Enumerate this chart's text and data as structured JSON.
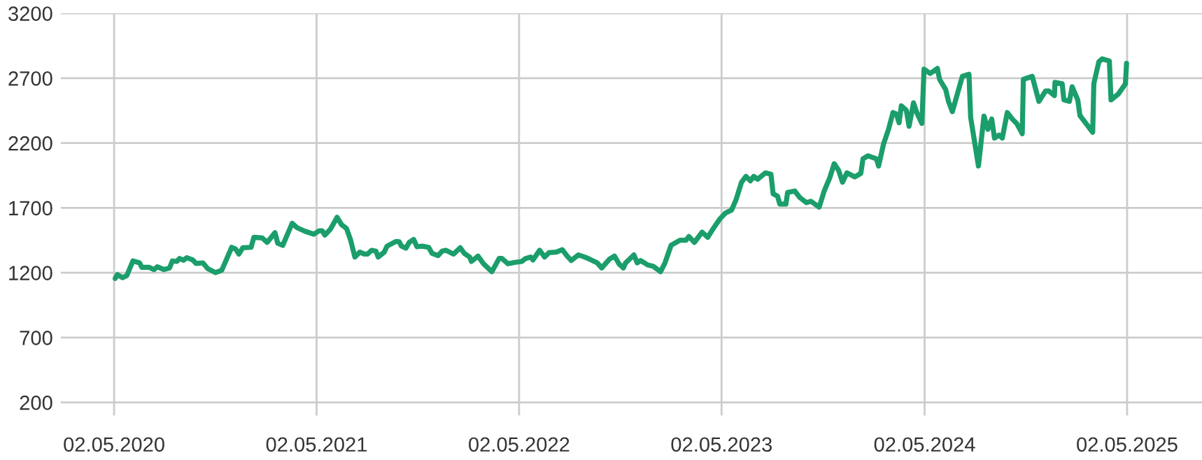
{
  "chart_data": {
    "type": "line",
    "x": [
      "2020-05-04",
      "2020-05-08",
      "2020-05-17",
      "2020-05-25",
      "2020-06-05",
      "2020-06-17",
      "2020-06-21",
      "2020-07-04",
      "2020-07-13",
      "2020-07-19",
      "2020-07-31",
      "2020-08-10",
      "2020-08-15",
      "2020-08-23",
      "2020-08-28",
      "2020-09-04",
      "2020-09-10",
      "2020-09-21",
      "2020-09-27",
      "2020-10-09",
      "2020-10-18",
      "2020-11-01",
      "2020-11-12",
      "2020-11-19",
      "2020-11-30",
      "2020-12-07",
      "2020-12-13",
      "2020-12-20",
      "2021-01-04",
      "2021-01-09",
      "2021-01-24",
      "2021-02-02",
      "2021-02-16",
      "2021-02-21",
      "2021-03-02",
      "2021-03-19",
      "2021-03-28",
      "2021-04-11",
      "2021-04-27",
      "2021-05-07",
      "2021-05-12",
      "2021-05-17",
      "2021-05-27",
      "2021-06-08",
      "2021-06-16",
      "2021-06-25",
      "2021-07-02",
      "2021-07-10",
      "2021-07-19",
      "2021-07-27",
      "2021-08-02",
      "2021-08-09",
      "2021-08-17",
      "2021-08-21",
      "2021-09-01",
      "2021-09-06",
      "2021-09-22",
      "2021-09-28",
      "2021-10-02",
      "2021-10-10",
      "2021-10-16",
      "2021-10-24",
      "2021-10-30",
      "2021-11-08",
      "2021-11-20",
      "2021-11-26",
      "2021-12-07",
      "2021-12-14",
      "2021-12-21",
      "2022-01-04",
      "2022-01-16",
      "2022-01-23",
      "2022-02-02",
      "2022-02-05",
      "2022-02-17",
      "2022-02-27",
      "2022-03-14",
      "2022-03-27",
      "2022-04-01",
      "2022-04-12",
      "2022-04-25",
      "2022-05-07",
      "2022-05-14",
      "2022-05-23",
      "2022-05-27",
      "2022-06-08",
      "2022-06-17",
      "2022-06-25",
      "2022-07-08",
      "2022-07-19",
      "2022-07-27",
      "2022-08-04",
      "2022-08-17",
      "2022-08-28",
      "2022-09-06",
      "2022-09-20",
      "2022-09-28",
      "2022-10-12",
      "2022-10-21",
      "2022-10-29",
      "2022-11-06",
      "2022-11-10",
      "2022-11-25",
      "2022-12-01",
      "2022-12-07",
      "2022-12-20",
      "2022-12-30",
      "2023-01-12",
      "2023-01-20",
      "2023-01-31",
      "2023-02-16",
      "2023-02-27",
      "2023-03-04",
      "2023-03-14",
      "2023-03-28",
      "2023-04-07",
      "2023-04-18",
      "2023-04-29",
      "2023-05-09",
      "2023-05-20",
      "2023-05-28",
      "2023-06-07",
      "2023-06-15",
      "2023-06-23",
      "2023-06-29",
      "2023-07-06",
      "2023-07-20",
      "2023-07-30",
      "2023-08-03",
      "2023-08-11",
      "2023-08-15",
      "2023-08-26",
      "2023-08-29",
      "2023-09-11",
      "2023-09-20",
      "2023-10-02",
      "2023-10-10",
      "2023-10-25",
      "2023-11-03",
      "2023-11-13",
      "2023-11-21",
      "2023-11-29",
      "2023-12-06",
      "2023-12-14",
      "2023-12-28",
      "2024-01-08",
      "2024-01-12",
      "2024-01-21",
      "2024-02-05",
      "2024-02-09",
      "2024-02-18",
      "2024-02-27",
      "2024-03-06",
      "2024-03-12",
      "2024-03-17",
      "2024-03-21",
      "2024-03-30",
      "2024-04-04",
      "2024-04-12",
      "2024-04-18",
      "2024-04-27",
      "2024-05-01",
      "2024-05-12",
      "2024-05-25",
      "2024-05-29",
      "2024-06-09",
      "2024-06-14",
      "2024-06-21",
      "2024-07-09",
      "2024-07-21",
      "2024-07-24",
      "2024-08-07",
      "2024-08-17",
      "2024-08-24",
      "2024-08-31",
      "2024-09-05",
      "2024-09-13",
      "2024-09-19",
      "2024-09-28",
      "2024-10-07",
      "2024-10-15",
      "2024-10-25",
      "2024-10-27",
      "2024-11-12",
      "2024-11-24",
      "2024-12-06",
      "2024-12-12",
      "2024-12-22",
      "2024-12-23",
      "2025-01-05",
      "2025-01-08",
      "2025-01-18",
      "2025-01-23",
      "2025-02-02",
      "2025-02-06",
      "2025-03-01",
      "2025-03-03",
      "2025-03-12",
      "2025-03-18",
      "2025-03-31",
      "2025-04-03",
      "2025-04-16",
      "2025-04-29",
      "2025-05-01"
    ],
    "series": [
      {
        "color": "#1b9e6b",
        "values": [
          1156,
          1185,
          1162,
          1178,
          1291,
          1276,
          1242,
          1242,
          1224,
          1246,
          1224,
          1237,
          1291,
          1287,
          1310,
          1296,
          1316,
          1298,
          1271,
          1276,
          1231,
          1201,
          1219,
          1287,
          1396,
          1382,
          1344,
          1393,
          1396,
          1473,
          1468,
          1434,
          1509,
          1427,
          1411,
          1581,
          1547,
          1520,
          1497,
          1524,
          1524,
          1490,
          1536,
          1627,
          1570,
          1541,
          1457,
          1321,
          1359,
          1344,
          1344,
          1373,
          1366,
          1321,
          1359,
          1405,
          1441,
          1439,
          1405,
          1389,
          1434,
          1457,
          1400,
          1405,
          1396,
          1350,
          1332,
          1366,
          1373,
          1344,
          1393,
          1350,
          1321,
          1287,
          1328,
          1269,
          1208,
          1310,
          1310,
          1269,
          1280,
          1287,
          1310,
          1321,
          1298,
          1373,
          1321,
          1355,
          1359,
          1378,
          1332,
          1294,
          1337,
          1321,
          1305,
          1276,
          1237,
          1305,
          1328,
          1269,
          1237,
          1276,
          1337,
          1276,
          1294,
          1260,
          1249,
          1208,
          1276,
          1411,
          1450,
          1450,
          1479,
          1434,
          1513,
          1473,
          1547,
          1615,
          1660,
          1683,
          1762,
          1898,
          1943,
          1909,
          1943,
          1921,
          1970,
          1959,
          1808,
          1790,
          1729,
          1729,
          1819,
          1830,
          1780,
          1740,
          1751,
          1706,
          1830,
          1932,
          2041,
          1989,
          1898,
          1970,
          1939,
          1966,
          2079,
          2102,
          2079,
          2023,
          2193,
          2306,
          2435,
          2424,
          2356,
          2487,
          2453,
          2329,
          2510,
          2433,
          2351,
          2770,
          2736,
          2775,
          2691,
          2612,
          2521,
          2442,
          2714,
          2730,
          2397,
          2023,
          2408,
          2306,
          2385,
          2238,
          2261,
          2238,
          2435,
          2385,
          2351,
          2272,
          2691,
          2714,
          2521,
          2601,
          2601,
          2566,
          2668,
          2657,
          2533,
          2521,
          2634,
          2533,
          2412,
          2283,
          2657,
          2826,
          2849,
          2833,
          2533,
          2577,
          2657,
          2815
        ]
      }
    ],
    "xlim": [
      "2020-01-27",
      "2025-09-14"
    ],
    "xticks": [
      {
        "value": "2020-05-02",
        "label": "02.05.2020"
      },
      {
        "value": "2021-05-02",
        "label": "02.05.2021"
      },
      {
        "value": "2022-05-02",
        "label": "02.05.2022"
      },
      {
        "value": "2023-05-02",
        "label": "02.05.2023"
      },
      {
        "value": "2024-05-02",
        "label": "02.05.2024"
      },
      {
        "value": "2025-05-02",
        "label": "02.05.2025"
      }
    ],
    "ylim": [
      100,
      3200
    ],
    "yticks": [
      200,
      700,
      1200,
      1700,
      2200,
      2700,
      3200
    ],
    "grid": true,
    "line_style": "solid"
  }
}
